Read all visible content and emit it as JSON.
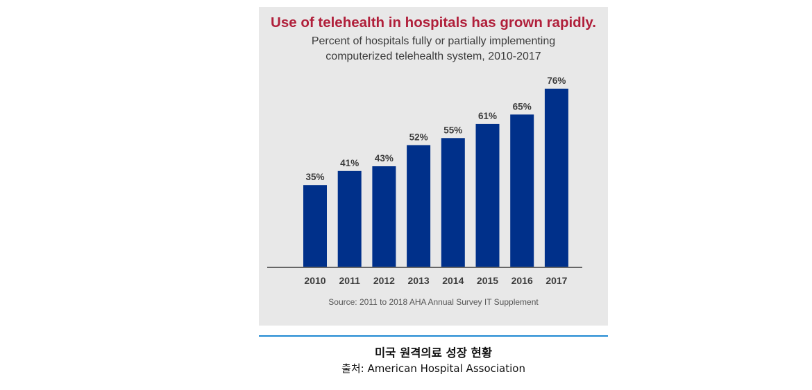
{
  "colors": {
    "bar": "#00308a",
    "axis": "#666666",
    "label": "#3c3c3c",
    "title": "#b01f3a",
    "panel": "#e8e8e8",
    "divider": "#1e88d2"
  },
  "chart_data": {
    "type": "bar",
    "title": "Use of telehealth in hospitals has grown rapidly.",
    "subtitle_lines": [
      "Percent of hospitals fully or partially implementing",
      "computerized telehealth system, 2010-2017"
    ],
    "categories": [
      "2010",
      "2011",
      "2012",
      "2013",
      "2014",
      "2015",
      "2016",
      "2017"
    ],
    "values": [
      35,
      41,
      43,
      52,
      55,
      61,
      65,
      76
    ],
    "value_labels": [
      "35%",
      "41%",
      "43%",
      "52%",
      "55%",
      "61%",
      "65%",
      "76%"
    ],
    "xlabel": "",
    "ylabel": "",
    "ylim": [
      0,
      76
    ],
    "grid": false,
    "legend": "none",
    "source": "Source: 2011 to 2018 AHA Annual Survey IT Supplement"
  },
  "caption": {
    "title": "미국 원격의료 성장 현황",
    "source": "출처: American Hospital Association"
  }
}
